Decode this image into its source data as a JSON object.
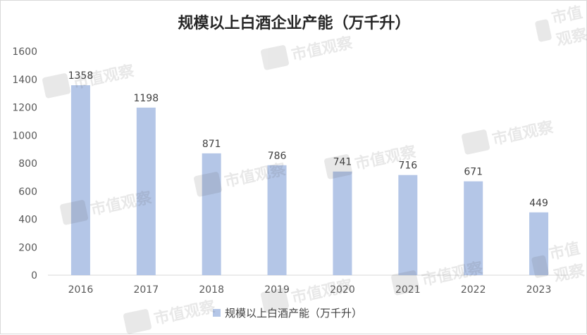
{
  "chart_data": {
    "type": "bar",
    "title": "规模以上白酒企业产能（万千升）",
    "categories": [
      "2016",
      "2017",
      "2018",
      "2019",
      "2020",
      "2021",
      "2022",
      "2023"
    ],
    "series": [
      {
        "name": "规模以上白酒产能（万千升）",
        "values": [
          1358,
          1198,
          871,
          786,
          741,
          716,
          671,
          449
        ]
      }
    ],
    "yticks": [
      "0",
      "200",
      "400",
      "600",
      "800",
      "1000",
      "1200",
      "1400",
      "1600"
    ],
    "ylim": [
      0,
      1600
    ],
    "grid": false,
    "legend_position": "bottom",
    "bar_color": "#b4c6e7"
  },
  "watermark": {
    "text": "市值观察"
  }
}
